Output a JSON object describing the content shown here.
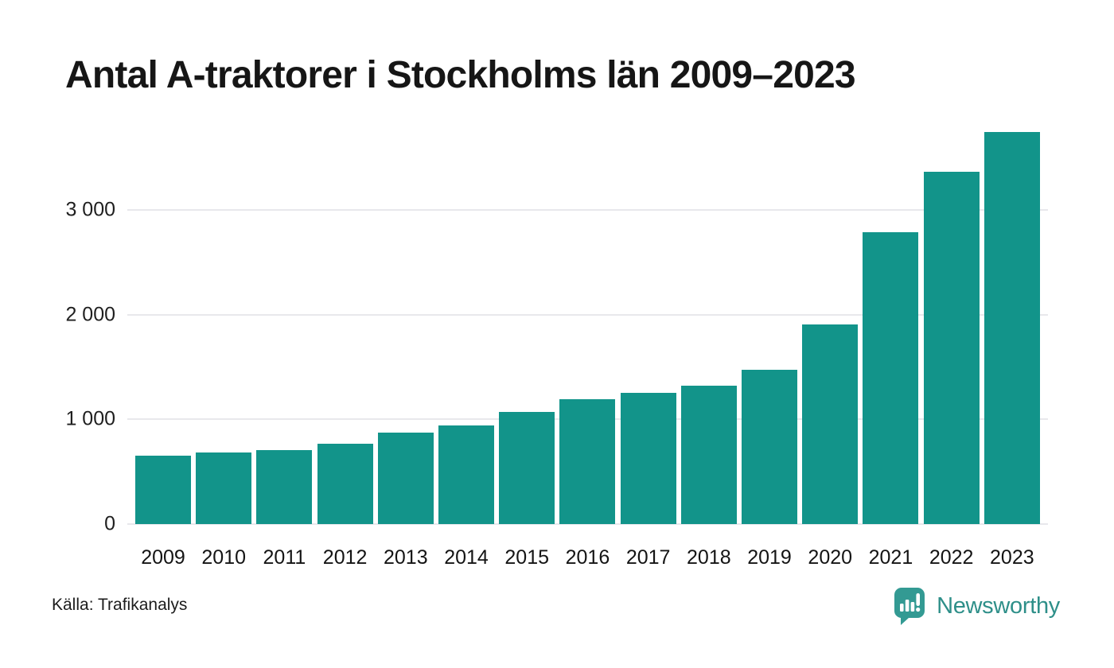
{
  "title": "Antal A-traktorer i Stockholms län 2009–2023",
  "source": "Källa: Trafikanalys",
  "branding": {
    "name": "Newsworthy",
    "icon": "newsworthy-bubble-chart-icon",
    "icon_color": "#339A93",
    "text_color": "#2E8F89"
  },
  "chart_data": {
    "type": "bar",
    "title": "Antal A-traktorer i Stockholms län 2009–2023",
    "categories": [
      "2009",
      "2010",
      "2011",
      "2012",
      "2013",
      "2014",
      "2015",
      "2016",
      "2017",
      "2018",
      "2019",
      "2020",
      "2021",
      "2022",
      "2023"
    ],
    "values": [
      655,
      685,
      705,
      765,
      870,
      940,
      1070,
      1190,
      1250,
      1325,
      1470,
      1905,
      2790,
      3360,
      3740
    ],
    "xlabel": "",
    "ylabel": "",
    "ylim": [
      0,
      3750
    ],
    "yticks": [
      {
        "value": 0,
        "label": "0"
      },
      {
        "value": 1000,
        "label": "1 000"
      },
      {
        "value": 2000,
        "label": "2 000"
      },
      {
        "value": 3000,
        "label": "3 000"
      }
    ],
    "bar_color": "#12948A",
    "gridline_color": "#e8e8ec",
    "grid": true,
    "legend": "none"
  }
}
